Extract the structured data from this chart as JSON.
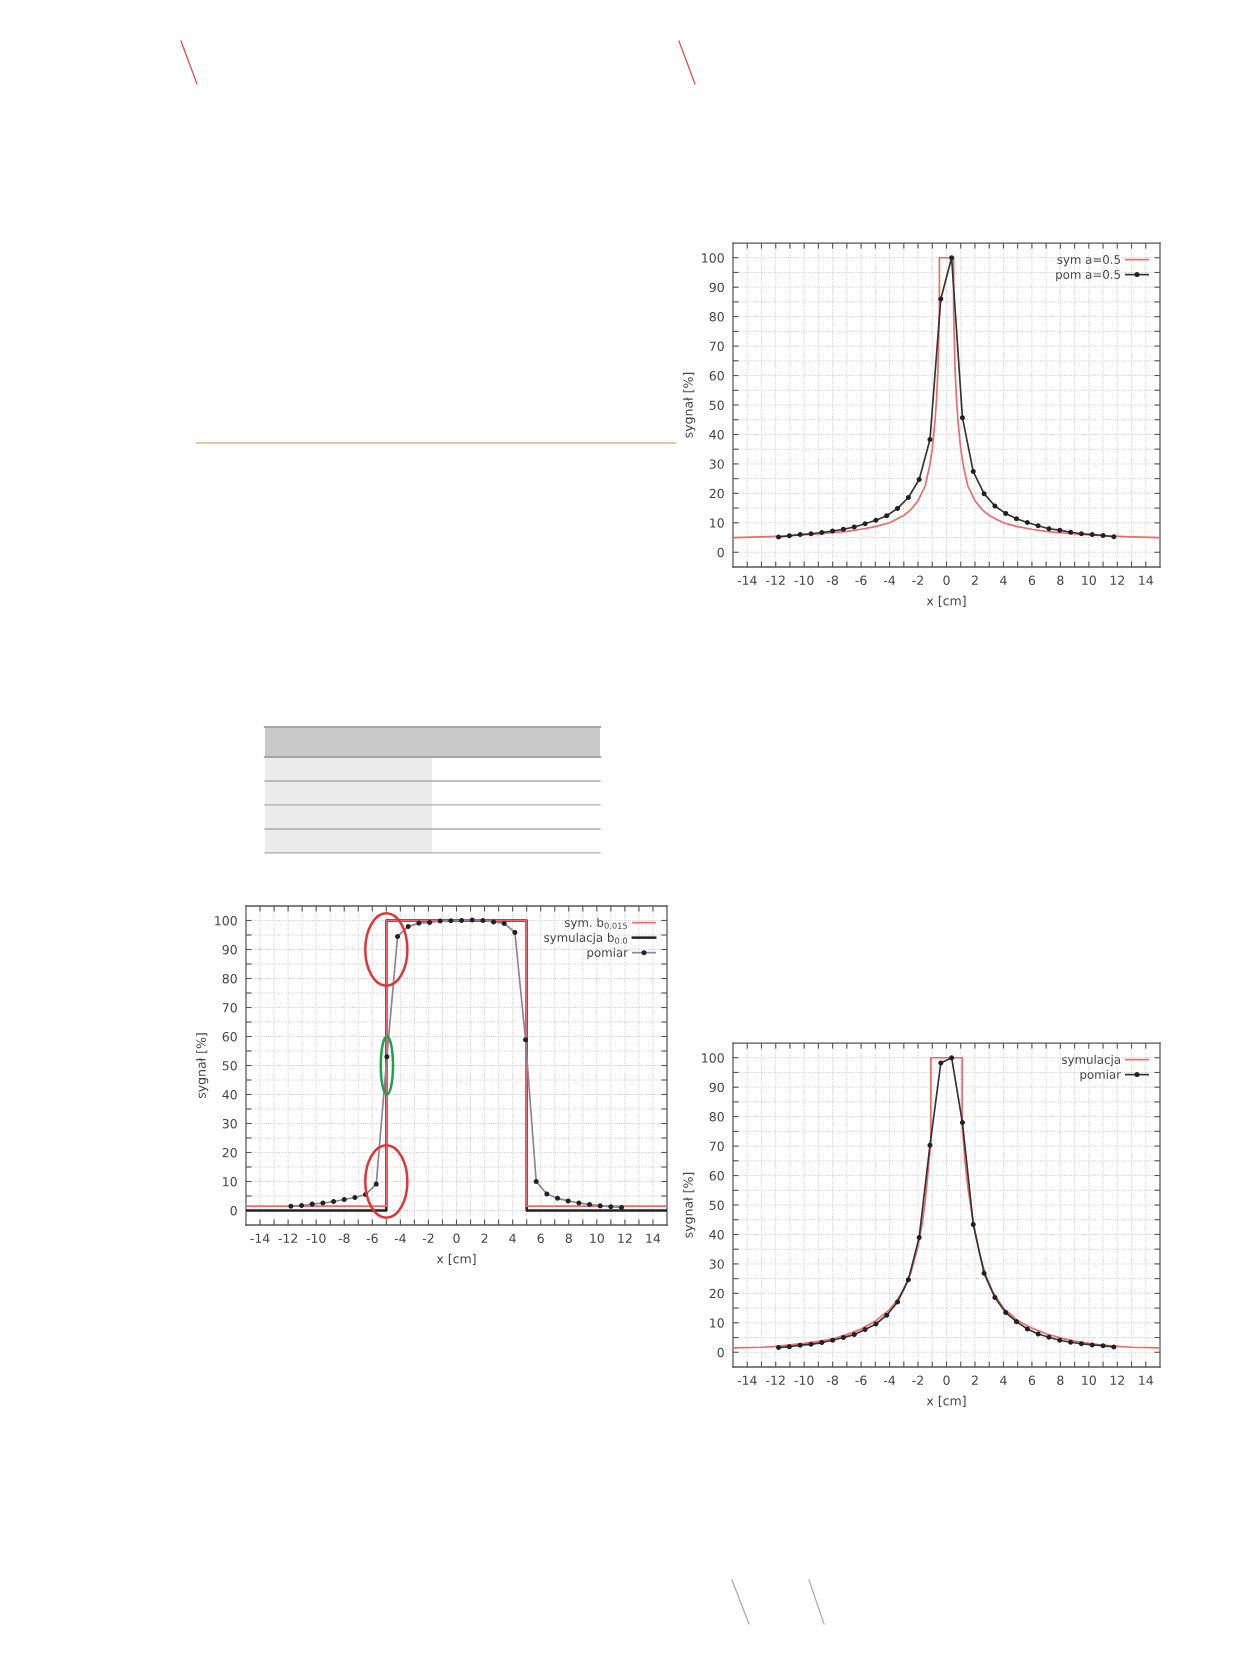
{
  "chart_data": [
    {
      "type": "line",
      "xlabel": "x [cm]",
      "ylabel": "sygnał [%]",
      "xlim": [
        -15,
        15
      ],
      "ylim": [
        -5,
        105
      ],
      "xticks": [
        -14,
        {
          "value": -13,
          "label": null
        },
        -12,
        {
          "value": -11,
          "label": null
        },
        -10,
        {
          "value": -9,
          "label": null
        },
        -8,
        {
          "value": -7,
          "label": null
        },
        -6,
        {
          "value": -5,
          "label": null
        },
        -4,
        {
          "value": -3,
          "label": null
        },
        -2,
        {
          "value": -1,
          "label": null
        },
        0,
        {
          "value": 1,
          "label": null
        },
        2,
        {
          "value": 3,
          "label": null
        },
        4,
        {
          "value": 5,
          "label": null
        },
        6,
        {
          "value": 7,
          "label": null
        },
        8,
        {
          "value": 9,
          "label": null
        },
        10,
        {
          "value": 11,
          "label": null
        },
        12,
        {
          "value": 13,
          "label": null
        },
        14
      ],
      "yticks": [
        0,
        {
          "value": 5,
          "label": null
        },
        10,
        {
          "value": 15,
          "label": null
        },
        20,
        {
          "value": 25,
          "label": null
        },
        30,
        {
          "value": 35,
          "label": null
        },
        40,
        {
          "value": 45,
          "label": null
        },
        50,
        {
          "value": 55,
          "label": null
        },
        60,
        {
          "value": 65,
          "label": null
        },
        70,
        {
          "value": 75,
          "label": null
        },
        80,
        {
          "value": 85,
          "label": null
        },
        90,
        {
          "value": 95,
          "label": null
        },
        100
      ],
      "grid": true,
      "legend": "top right",
      "series": [
        {
          "name": "sym a=0.5",
          "color": "#ec6b6b",
          "marker": "none",
          "x": [
            -15,
            -13,
            -11,
            -9,
            -7,
            -6,
            -5,
            -4,
            -3,
            -2.5,
            -2,
            -1.5,
            -1.2,
            -1,
            -0.8,
            -0.7,
            -0.6,
            -0.5,
            -0.5,
            0.5,
            0.5,
            0.6,
            0.7,
            0.8,
            1,
            1.2,
            1.5,
            2,
            2.5,
            3,
            4,
            5,
            6,
            7,
            9,
            11,
            13,
            15
          ],
          "values": [
            5.0,
            5.2,
            5.6,
            6.2,
            7.1,
            7.8,
            8.7,
            10,
            12.5,
            14.5,
            17.5,
            22.5,
            29,
            35,
            45,
            52,
            62,
            82,
            100,
            100,
            82,
            62,
            52,
            45,
            35,
            29,
            22.5,
            17.5,
            14.5,
            12.5,
            10,
            8.7,
            7.8,
            7.1,
            6.2,
            5.6,
            5.2,
            5.0
          ]
        },
        {
          "name": "pom a=0.5",
          "color": "#333333",
          "marker": "circle",
          "x": [
            -11.8,
            -11.04,
            -10.28,
            -9.52,
            -8.76,
            -8.0,
            -7.24,
            -6.48,
            -5.72,
            -4.96,
            -4.2,
            -3.44,
            -2.68,
            -1.92,
            -1.16,
            -0.4,
            0.36,
            1.12,
            1.88,
            2.64,
            3.4,
            4.16,
            4.92,
            5.68,
            6.44,
            7.2,
            7.96,
            8.72,
            9.48,
            10.24,
            11.0,
            11.76
          ],
          "values": [
            5.2,
            5.6,
            6.0,
            6.3,
            6.7,
            7.2,
            7.8,
            8.6,
            9.7,
            10.9,
            12.4,
            14.9,
            18.6,
            24.7,
            38.3,
            86,
            100,
            45.7,
            27.4,
            19.9,
            15.7,
            13.2,
            11.4,
            10.1,
            9.0,
            8.0,
            7.5,
            6.8,
            6.3,
            6.0,
            5.7,
            5.3
          ]
        }
      ]
    },
    {
      "type": "line",
      "xlabel": "x [cm]",
      "ylabel": "sygnał [%]",
      "xlim": [
        -15,
        15
      ],
      "ylim": [
        -5,
        105
      ],
      "xticks": [
        -14,
        {
          "value": -13,
          "label": null
        },
        -12,
        {
          "value": -11,
          "label": null
        },
        -10,
        {
          "value": -9,
          "label": null
        },
        -8,
        {
          "value": -7,
          "label": null
        },
        -6,
        {
          "value": -5,
          "label": null
        },
        -4,
        {
          "value": -3,
          "label": null
        },
        -2,
        {
          "value": -1,
          "label": null
        },
        0,
        {
          "value": 1,
          "label": null
        },
        2,
        {
          "value": 3,
          "label": null
        },
        4,
        {
          "value": 5,
          "label": null
        },
        6,
        {
          "value": 7,
          "label": null
        },
        8,
        {
          "value": 9,
          "label": null
        },
        10,
        {
          "value": 11,
          "label": null
        },
        12,
        {
          "value": 13,
          "label": null
        },
        14
      ],
      "yticks": [
        0,
        {
          "value": 5,
          "label": null
        },
        10,
        {
          "value": 15,
          "label": null
        },
        20,
        {
          "value": 25,
          "label": null
        },
        30,
        {
          "value": 35,
          "label": null
        },
        40,
        {
          "value": 45,
          "label": null
        },
        50,
        {
          "value": 55,
          "label": null
        },
        60,
        {
          "value": 65,
          "label": null
        },
        70,
        {
          "value": 75,
          "label": null
        },
        80,
        {
          "value": 85,
          "label": null
        },
        90,
        {
          "value": 95,
          "label": null
        },
        100
      ],
      "grid": true,
      "legend": "top right",
      "series": [
        {
          "name": "sym. b$_{0.015}$",
          "color": "#ec6b6b",
          "marker": "none",
          "x": [
            -15,
            -5,
            -5,
            5,
            5,
            15
          ],
          "values": [
            1.5,
            1.5,
            100,
            100,
            1.5,
            1.5
          ]
        },
        {
          "name": "symulacja b$_{0.0}$",
          "color": "#222222",
          "marker": "none",
          "x": [
            -15,
            -5,
            -5,
            5,
            5,
            15
          ],
          "values": [
            0,
            0,
            100,
            100,
            0,
            0
          ]
        },
        {
          "name": "pomiar",
          "color": "#8e8299",
          "marker": "circle",
          "x": [
            -11.8,
            -11.04,
            -10.28,
            -9.52,
            -8.76,
            -8.0,
            -7.24,
            -6.48,
            -5.72,
            -4.96,
            -4.2,
            -3.44,
            -2.68,
            -1.92,
            -1.16,
            -0.4,
            0.36,
            1.12,
            1.88,
            2.64,
            3.4,
            4.16,
            4.92,
            5.68,
            6.44,
            7.2,
            7.96,
            8.72,
            9.48,
            10.24,
            11.0,
            11.76
          ],
          "values": [
            1.5,
            1.7,
            2.2,
            2.6,
            3.1,
            3.8,
            4.5,
            5.5,
            9.1,
            53,
            94.5,
            97.9,
            99.1,
            99.3,
            99.8,
            99.9,
            100,
            100.2,
            100,
            99.5,
            99,
            95.9,
            58.9,
            10,
            5.7,
            4.2,
            3.3,
            2.6,
            2.1,
            1.6,
            1.3,
            1.0
          ]
        }
      ]
    },
    {
      "type": "line",
      "xlabel": "x [cm]",
      "ylabel": "sygnał [%]",
      "xlim": [
        -15,
        15
      ],
      "ylim": [
        -5,
        105
      ],
      "xticks": [
        -14,
        {
          "value": -13,
          "label": null
        },
        -12,
        {
          "value": -11,
          "label": null
        },
        -10,
        {
          "value": -9,
          "label": null
        },
        -8,
        {
          "value": -7,
          "label": null
        },
        -6,
        {
          "value": -5,
          "label": null
        },
        -4,
        {
          "value": -3,
          "label": null
        },
        -2,
        {
          "value": -1,
          "label": null
        },
        0,
        {
          "value": 1,
          "label": null
        },
        2,
        {
          "value": 3,
          "label": null
        },
        4,
        {
          "value": 5,
          "label": null
        },
        6,
        {
          "value": 7,
          "label": null
        },
        8,
        {
          "value": 9,
          "label": null
        },
        10,
        {
          "value": 11,
          "label": null
        },
        12,
        {
          "value": 13,
          "label": null
        },
        14
      ],
      "yticks": [
        0,
        {
          "value": 5,
          "label": null
        },
        10,
        {
          "value": 15,
          "label": null
        },
        20,
        {
          "value": 25,
          "label": null
        },
        30,
        {
          "value": 35,
          "label": null
        },
        40,
        {
          "value": 45,
          "label": null
        },
        50,
        {
          "value": 55,
          "label": null
        },
        60,
        {
          "value": 65,
          "label": null
        },
        70,
        {
          "value": 75,
          "label": null
        },
        80,
        {
          "value": 85,
          "label": null
        },
        90,
        {
          "value": 95,
          "label": null
        },
        100
      ],
      "grid": true,
      "legend": "top right",
      "series": [
        {
          "name": "symulacja",
          "color": "#ec6b6b",
          "marker": "none",
          "x": [
            -15,
            -13,
            -12,
            -11,
            -10,
            -9,
            -8,
            -7,
            -6,
            -5,
            -4,
            -3.5,
            -3,
            -2.5,
            -2,
            -1.7,
            -1.5,
            -1.3,
            -1.1,
            -1.1,
            1.1,
            1.1,
            1.3,
            1.5,
            1.9,
            2.3,
            2.7,
            3.2,
            4,
            5,
            6,
            7,
            8,
            9,
            10,
            11,
            12,
            13,
            15
          ],
          "values": [
            1.5,
            1.7,
            2.0,
            2.5,
            3.0,
            3.7,
            4.6,
            6.0,
            7.9,
            10.6,
            14.5,
            17.5,
            21.5,
            27,
            36,
            44,
            51,
            61,
            72,
            100,
            100,
            77,
            65,
            56,
            43.5,
            34,
            27,
            21,
            15,
            10.8,
            8.2,
            6.3,
            4.9,
            3.8,
            3.0,
            2.4,
            2.0,
            1.7,
            1.5
          ]
        },
        {
          "name": "pomiar",
          "color": "#333333",
          "marker": "circle",
          "x": [
            -11.8,
            -11.04,
            -10.28,
            -9.52,
            -8.76,
            -8.0,
            -7.24,
            -6.48,
            -5.72,
            -4.96,
            -4.2,
            -3.44,
            -2.68,
            -1.92,
            -1.16,
            -0.4,
            0.36,
            1.12,
            1.88,
            2.64,
            3.4,
            4.16,
            4.92,
            5.68,
            6.44,
            7.2,
            7.96,
            8.72,
            9.48,
            10.24,
            11.0,
            11.76
          ],
          "values": [
            1.6,
            1.9,
            2.4,
            2.7,
            3.3,
            4.1,
            5.0,
            6.0,
            7.7,
            9.6,
            12.6,
            17.1,
            24.6,
            39,
            70.3,
            98.2,
            100,
            78,
            43.4,
            26.8,
            18.6,
            13.5,
            10.4,
            7.9,
            6.2,
            5.1,
            4.1,
            3.4,
            2.9,
            2.5,
            2.2,
            1.8
          ]
        }
      ]
    }
  ]
}
